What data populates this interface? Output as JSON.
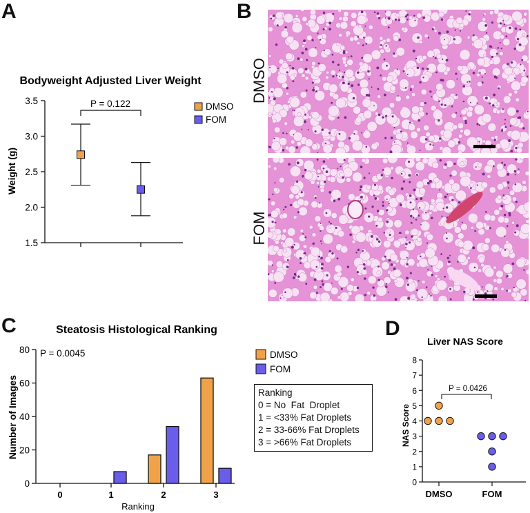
{
  "colors": {
    "dmso": "#F0A24A",
    "fom": "#6A5DEB",
    "tissue_bg": "#E592D6",
    "tissue_vac": "#F6E2F3",
    "nuclei": "#7A2A8C"
  },
  "panel_letters": {
    "a": "A",
    "b": "B",
    "c": "C",
    "d": "D"
  },
  "panel_b": {
    "top_label": "DMSO",
    "bottom_label": "FOM"
  },
  "chart_data": [
    {
      "id": "A",
      "type": "scatter",
      "title": "Bodyweight Adjusted Liver Weight",
      "ylabel": "Weight (g)",
      "xlabel": "",
      "ylim": [
        1.5,
        3.5
      ],
      "yticks": [
        "1.5",
        "2.0",
        "2.5",
        "3.0",
        "3.5"
      ],
      "series": [
        {
          "name": "DMSO",
          "mean": 2.74,
          "upper": 3.17,
          "lower": 2.31
        },
        {
          "name": "FOM",
          "mean": 2.25,
          "upper": 2.63,
          "lower": 1.88
        }
      ],
      "annotation": "P = 0.122",
      "legend": [
        "DMSO",
        "FOM"
      ],
      "legend_position": "right"
    },
    {
      "id": "C",
      "type": "bar",
      "title": "Steatosis Histological Ranking",
      "xlabel": "Ranking",
      "ylabel": "Number of Images",
      "categories": [
        "0",
        "1",
        "2",
        "3"
      ],
      "series": [
        {
          "name": "DMSO",
          "values": [
            0,
            0,
            17,
            63
          ]
        },
        {
          "name": "FOM",
          "values": [
            0,
            7,
            34,
            9
          ]
        }
      ],
      "ylim": [
        0,
        80
      ],
      "yticks": [
        "0",
        "20",
        "40",
        "60",
        "80"
      ],
      "annotation": "P = 0.0045",
      "legend": [
        "DMSO",
        "FOM"
      ],
      "legend_position": "right",
      "ranking_key": {
        "title": "Ranking",
        "lines": [
          "0 = No  Fat  Droplet",
          "1 = <33% Fat Droplets",
          "2 = 33-66% Fat Droplets",
          "3 = >66% Fat Droplets"
        ]
      }
    },
    {
      "id": "D",
      "type": "scatter",
      "title": "Liver NAS Score",
      "ylabel": "NAS Score",
      "xlabel": "",
      "categories": [
        "DMSO",
        "FOM"
      ],
      "ylim": [
        0,
        8
      ],
      "yticks": [
        "0",
        "1",
        "2",
        "3",
        "4",
        "5",
        "6",
        "7",
        "8"
      ],
      "series": [
        {
          "name": "DMSO",
          "values": [
            4,
            5,
            4,
            4
          ]
        },
        {
          "name": "FOM",
          "values": [
            3,
            3,
            3,
            2,
            1
          ]
        }
      ],
      "annotation": "P = 0.0426"
    }
  ]
}
